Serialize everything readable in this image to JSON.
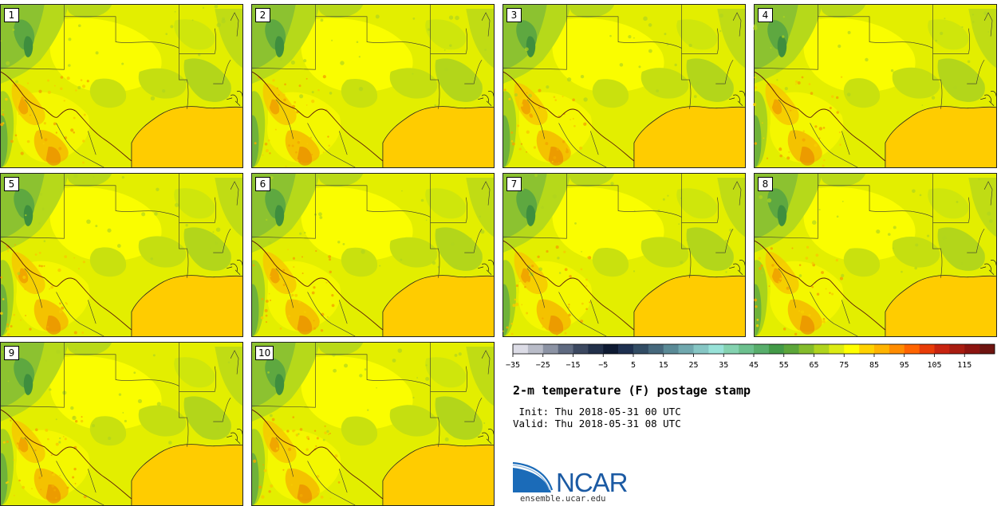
{
  "panels": [
    {
      "label": "1"
    },
    {
      "label": "2"
    },
    {
      "label": "3"
    },
    {
      "label": "4"
    },
    {
      "label": "5"
    },
    {
      "label": "6"
    },
    {
      "label": "7"
    },
    {
      "label": "8"
    },
    {
      "label": "9"
    },
    {
      "label": "10"
    }
  ],
  "colorbar": {
    "colors": [
      "#dcdce6",
      "#b9bcc8",
      "#8c93a4",
      "#5f6a80",
      "#3c4860",
      "#22304a",
      "#0e1a32",
      "#1e3050",
      "#324c64",
      "#46687c",
      "#5a8a96",
      "#70a8ae",
      "#86c6c4",
      "#98e2d8",
      "#84d2b0",
      "#6cc08e",
      "#58ae6c",
      "#439a48",
      "#5ca63a",
      "#84bc2c",
      "#b0d41e",
      "#dceb14",
      "#ffff00",
      "#ffd200",
      "#ffb400",
      "#ff8c00",
      "#ff6400",
      "#e83c08",
      "#c82410",
      "#a81c10",
      "#8c1410",
      "#6e1410"
    ],
    "tick_labels": [
      "−35",
      "−25",
      "−15",
      "−5",
      "5",
      "15",
      "25",
      "35",
      "45",
      "55",
      "65",
      "75",
      "85",
      "95",
      "105",
      "115"
    ]
  },
  "title": "2-m temperature (F) postage stamp",
  "init_text": " Init: Thu 2018-05-31 00 UTC",
  "valid_text": "Valid: Thu 2018-05-31 08 UTC",
  "logo": {
    "text": "NCAR",
    "url": "ensemble.ucar.edu"
  }
}
